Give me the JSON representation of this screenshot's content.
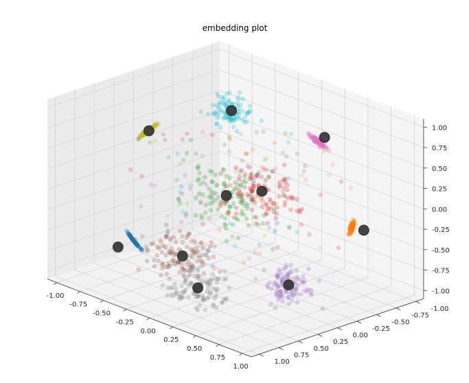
{
  "chart_data": {
    "type": "scatter",
    "projection": "3d",
    "title": "embedding plot",
    "xlabel": "",
    "ylabel": "",
    "zlabel": "",
    "xlim": [
      -1.1,
      1.1
    ],
    "ylim": [
      -1.1,
      1.1
    ],
    "zlim": [
      -1.1,
      1.1
    ],
    "x_ticks": [
      "-1.00",
      "-0.75",
      "-0.50",
      "-0.25",
      "0.00",
      "0.25",
      "0.50",
      "0.75",
      "1.00"
    ],
    "y_ticks": [
      "-1.00",
      "-0.75",
      "-0.50",
      "-0.25",
      "0.00",
      "0.25",
      "0.50",
      "0.75",
      "1.00"
    ],
    "z_ticks": [
      "-1.00",
      "-0.75",
      "-0.50",
      "-0.25",
      "0.00",
      "0.25",
      "0.50",
      "0.75",
      "1.00"
    ],
    "grid": true,
    "legend": "none",
    "point_alpha": 0.25,
    "centroid_color": "#3a3a3a",
    "clusters": [
      {
        "color": "#1f77b4",
        "centroid": [
          -0.55,
          0.85,
          -0.55
        ],
        "spread": 0.08
      },
      {
        "color": "#ff7f0e",
        "centroid": [
          0.75,
          -0.75,
          -0.3
        ],
        "spread": 0.06
      },
      {
        "color": "#2ca02c",
        "centroid": [
          -0.1,
          0.0,
          0.0
        ],
        "spread": 0.25
      },
      {
        "color": "#d62728",
        "centroid": [
          0.2,
          -0.1,
          0.15
        ],
        "spread": 0.25
      },
      {
        "color": "#9467bd",
        "centroid": [
          0.7,
          0.15,
          -0.7
        ],
        "spread": 0.15
      },
      {
        "color": "#8c564b",
        "centroid": [
          -0.15,
          0.5,
          -0.6
        ],
        "spread": 0.2
      },
      {
        "color": "#e377c2",
        "centroid": [
          0.2,
          -0.9,
          0.55
        ],
        "spread": 0.08
      },
      {
        "color": "#7f7f7f",
        "centroid": [
          0.1,
          0.6,
          -0.85
        ],
        "spread": 0.2
      },
      {
        "color": "#bcbd22",
        "centroid": [
          -0.85,
          0.1,
          0.5
        ],
        "spread": 0.08
      },
      {
        "color": "#17becf",
        "centroid": [
          -0.55,
          -0.6,
          0.65
        ],
        "spread": 0.12
      }
    ]
  }
}
